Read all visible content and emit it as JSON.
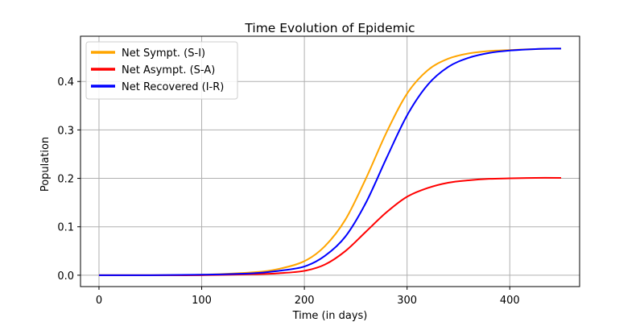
{
  "chart_data": {
    "type": "line",
    "title": "Time Evolution of Epidemic",
    "xlabel": "Time (in days)",
    "ylabel": "Population",
    "xlim": [
      -18,
      468
    ],
    "ylim": [
      -0.0235,
      0.4935
    ],
    "xticks": [
      0,
      100,
      200,
      300,
      400
    ],
    "yticks": [
      0.0,
      0.1,
      0.2,
      0.3,
      0.4
    ],
    "xtick_labels": [
      "0",
      "100",
      "200",
      "300",
      "400"
    ],
    "ytick_labels": [
      "0.0",
      "0.1",
      "0.2",
      "0.3",
      "0.4"
    ],
    "grid": true,
    "legend_position": "upper-left",
    "series": [
      {
        "name": "Net Sympt. (S-I)",
        "color": "#ffa500",
        "x": [
          0,
          50,
          100,
          150,
          175,
          200,
          220,
          240,
          260,
          280,
          300,
          320,
          340,
          360,
          380,
          400,
          425,
          450
        ],
        "y": [
          0.0,
          0.0,
          0.001,
          0.006,
          0.013,
          0.029,
          0.06,
          0.115,
          0.2,
          0.295,
          0.375,
          0.423,
          0.447,
          0.458,
          0.463,
          0.465,
          0.467,
          0.468
        ]
      },
      {
        "name": "Net Asympt. (S-A)",
        "color": "#ff0000",
        "x": [
          0,
          50,
          100,
          150,
          175,
          200,
          220,
          240,
          260,
          280,
          300,
          320,
          340,
          360,
          380,
          400,
          425,
          450
        ],
        "y": [
          0.0,
          0.0,
          0.0,
          0.002,
          0.004,
          0.009,
          0.022,
          0.05,
          0.09,
          0.13,
          0.162,
          0.18,
          0.191,
          0.196,
          0.199,
          0.2,
          0.201,
          0.201
        ]
      },
      {
        "name": "Net Recovered (I-R)",
        "color": "#0000ff",
        "x": [
          0,
          50,
          100,
          150,
          175,
          200,
          220,
          240,
          260,
          280,
          300,
          320,
          340,
          360,
          380,
          400,
          425,
          450
        ],
        "y": [
          0.0,
          0.0,
          0.001,
          0.004,
          0.009,
          0.018,
          0.04,
          0.08,
          0.15,
          0.242,
          0.33,
          0.393,
          0.43,
          0.449,
          0.459,
          0.464,
          0.467,
          0.468
        ]
      }
    ]
  }
}
